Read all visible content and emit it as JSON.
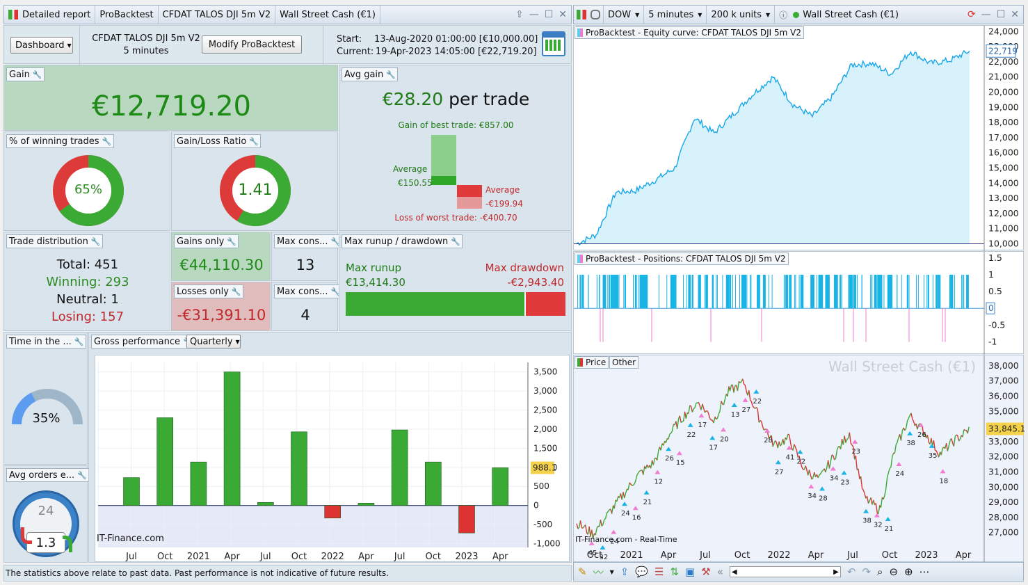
{
  "left_title": {
    "tabs": [
      "Detailed report",
      "ProBacktest",
      "CFDAT TALOS DJI 5m V2",
      "Wall Street Cash (€1)"
    ]
  },
  "right_title": {
    "instrument": "DOW",
    "timeframe": "5 minutes",
    "units": "200 k units",
    "name": "Wall Street Cash (€1)"
  },
  "header": {
    "dashboard_label": "Dashboard",
    "strategy_name": "CFDAT TALOS DJI 5m V2",
    "strategy_timeframe": "5 minutes",
    "modify_label": "Modify ProBacktest",
    "start_label": "Start:",
    "start_value": "13-Aug-2020 01:00:00 [€10,000.00]",
    "current_label": "Current:",
    "current_value": "19-Apr-2023 14:05:00 [€22,719.20]"
  },
  "gain": {
    "label": "Gain",
    "value": "€12,719.20"
  },
  "avg_gain": {
    "label": "Avg gain",
    "value": "€28.20",
    "suffix": "per trade",
    "best_trade": "Gain of best trade: €857.00",
    "avg_win_label": "Average",
    "avg_win_value": "€150.55",
    "avg_loss_label": "Average",
    "avg_loss_value": "-€199.94",
    "worst_trade": "Loss of worst trade: -€400.70",
    "best": 857.0,
    "avg_win": 150.55,
    "avg_loss": 199.94,
    "worst": 400.7
  },
  "winning_pct": {
    "label": "% of winning trades",
    "value": "65%",
    "fraction": 0.65
  },
  "gain_loss_ratio": {
    "label": "Gain/Loss Ratio",
    "value": "1.41",
    "fraction": 0.585
  },
  "trade_distribution": {
    "label": "Trade distribution",
    "total": "Total: 451",
    "winning": "Winning: 293",
    "neutral": "Neutral: 1",
    "losing": "Losing: 157"
  },
  "gains_only": {
    "label": "Gains only",
    "value": "€44,110.30"
  },
  "losses_only": {
    "label": "Losses only",
    "value": "-€31,391.10"
  },
  "max_cons_win": {
    "label": "Max cons...",
    "value": "13"
  },
  "max_cons_loss": {
    "label": "Max cons...",
    "value": "4"
  },
  "runup": {
    "label": "Max runup / drawdown",
    "runup_label": "Max runup",
    "runup_value": "€13,414.30",
    "drawdown_label": "Max drawdown",
    "drawdown_value": "-€2,943.40",
    "runup_fraction": 0.82
  },
  "time_in_market": {
    "label": "Time in the ...",
    "value": "35%",
    "fraction": 0.35
  },
  "avg_orders": {
    "label": "Avg orders e...",
    "clock_value": "24",
    "value": "1.3"
  },
  "gross_perf": {
    "label": "Gross performance",
    "period": "Quarterly",
    "watermark": "IT-Finance.com",
    "last_label": "988.1"
  },
  "chart_data": [
    {
      "type": "bar",
      "title": "Gross performance",
      "categories": [
        "Jul",
        "Oct",
        "2021",
        "Apr",
        "Jul",
        "Oct",
        "2022",
        "Apr",
        "Jul",
        "Oct",
        "2023",
        "Apr"
      ],
      "values": [
        730,
        2300,
        1140,
        3500,
        80,
        1930,
        -330,
        60,
        1980,
        1140,
        -720,
        988.1
      ],
      "ylim": [
        -1100,
        3750
      ],
      "yticks": [
        3500,
        3000,
        2500,
        2000,
        1500,
        1000,
        500,
        0,
        -500,
        -1000
      ],
      "ytick_labels": [
        "3,500",
        "3,000",
        "2,500",
        "2,000",
        "1,500",
        "1,000",
        "500",
        "0",
        "-500",
        "-1,000"
      ],
      "colors": {
        "positive": "#3aaa35",
        "negative": "#dd3333"
      }
    },
    {
      "type": "area",
      "title": "ProBacktest - Equity curve: CFDAT TALOS DJI 5m V2",
      "x": [
        0,
        5,
        10,
        15,
        20,
        25,
        30,
        35,
        40,
        45,
        50,
        55,
        60,
        65,
        70,
        75,
        80,
        85,
        90,
        95,
        100
      ],
      "values": [
        10000,
        10600,
        13400,
        13500,
        14200,
        15000,
        18300,
        17300,
        18600,
        19900,
        21000,
        19200,
        18400,
        19700,
        21800,
        21900,
        21200,
        22700,
        21900,
        22100,
        22719
      ],
      "ylim": [
        9700,
        24200
      ],
      "yticks": [
        24000,
        23000,
        22000,
        21000,
        20000,
        19000,
        18000,
        17000,
        16000,
        15000,
        14000,
        13000,
        12000,
        11000,
        10000
      ],
      "ytick_labels": [
        "24,000",
        "23,000",
        "22,000",
        "21,000",
        "20,000",
        "19,000",
        "18,000",
        "17,000",
        "16,000",
        "15,000",
        "14,000",
        "13,000",
        "12,000",
        "11,000",
        "10,000"
      ],
      "last_label": "22,719"
    },
    {
      "type": "bar",
      "title": "ProBacktest - Positions: CFDAT TALOS DJI 5m V2",
      "yticks": [
        1.5,
        1,
        0.5,
        0,
        -0.5,
        -1
      ],
      "ytick_labels": [
        "1.5",
        "1",
        "0.5",
        "0",
        "-0.5",
        "-1"
      ],
      "ylim": [
        -1.3,
        1.6
      ],
      "last_label": "0"
    },
    {
      "type": "line",
      "title": "Price",
      "watermark": "Wall Street Cash (€1)",
      "source": "IT-Finance.com - Real-Time",
      "x_labels": [
        "Oct",
        "2021",
        "Apr",
        "Jul",
        "Oct",
        "2022",
        "Apr",
        "Jul",
        "Oct",
        "2023",
        "Apr"
      ],
      "values": [
        27600,
        26900,
        28200,
        29500,
        30800,
        31600,
        33400,
        34700,
        35600,
        34400,
        36300,
        36900,
        34600,
        32800,
        33200,
        31200,
        30500,
        32100,
        33600,
        29300,
        28500,
        32400,
        34700,
        33600,
        32200,
        33100,
        33845.1
      ],
      "ylim": [
        26300,
        38500
      ],
      "yticks": [
        38000,
        37000,
        36000,
        35000,
        34000,
        33000,
        32000,
        31000,
        30000,
        29000,
        28000,
        27000
      ],
      "ytick_labels": [
        "38,000",
        "37,000",
        "36,000",
        "35,000",
        "34,000",
        "33,000",
        "32,000",
        "31,000",
        "30,000",
        "29,000",
        "28,000",
        "27,000"
      ],
      "last_label": "33,845.1",
      "markers": [
        "45",
        "32",
        "24",
        "24",
        "16",
        "21",
        "12",
        "26",
        "15",
        "22",
        "17",
        "17",
        "20",
        "13",
        "27",
        "22",
        "28",
        "27",
        "41",
        "22",
        "34",
        "28",
        "34",
        "23",
        "23",
        "38",
        "32",
        "21",
        "24",
        "38",
        "26",
        "35",
        "18"
      ]
    }
  ],
  "right_panels": {
    "price_tab": "Price",
    "other_tab": "Other"
  },
  "disclaimer": "The statistics above relate to past data. Past performance is not indicative of future results."
}
